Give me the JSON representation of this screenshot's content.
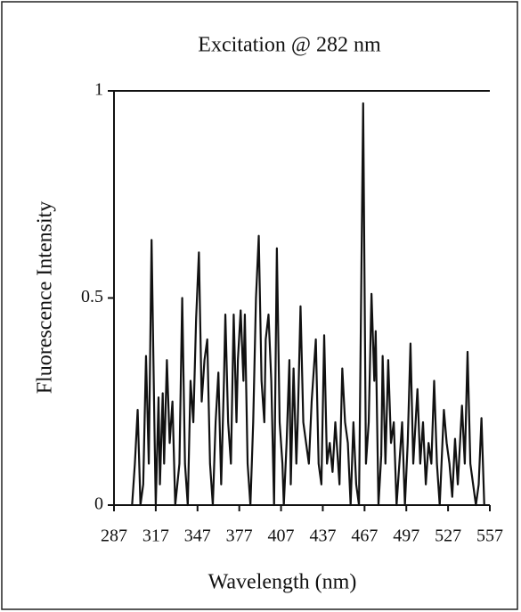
{
  "chart_data": {
    "type": "line",
    "title": "Excitation @ 282 nm",
    "x_label": "Wavelength (nm)",
    "y_label": "Fluorescence Intensity",
    "xlim": [
      287,
      557
    ],
    "xticks": [
      287,
      317,
      347,
      377,
      407,
      437,
      467,
      497,
      527,
      557
    ],
    "ylim": [
      0,
      1
    ],
    "yticks": [
      0,
      0.5,
      1
    ],
    "grid": false,
    "series": [
      {
        "color": "#111111",
        "x": [
          300,
          302,
          304,
          306,
          308,
          310,
          312,
          314,
          316,
          317,
          319,
          320,
          322,
          323,
          325,
          327,
          329,
          331,
          334,
          336,
          338,
          340,
          342,
          344,
          346,
          348,
          350,
          352,
          354,
          356,
          358,
          360,
          362,
          364,
          366,
          367,
          369,
          371,
          373,
          375,
          376,
          378,
          380,
          381,
          383,
          385,
          387,
          389,
          391,
          393,
          395,
          396,
          398,
          400,
          402,
          404,
          406,
          408,
          409,
          411,
          413,
          414,
          416,
          418,
          419,
          421,
          423,
          425,
          427,
          429,
          432,
          434,
          436,
          438,
          440,
          442,
          444,
          446,
          449,
          451,
          453,
          455,
          457,
          459,
          461,
          463,
          466,
          468,
          470,
          472,
          474,
          475,
          477,
          479,
          480,
          482,
          484,
          486,
          488,
          490,
          492,
          494,
          496,
          498,
          500,
          502,
          505,
          507,
          509,
          511,
          513,
          515,
          517,
          519,
          521,
          524,
          526,
          528,
          530,
          532,
          534,
          537,
          539,
          541,
          543,
          545,
          547,
          549,
          551,
          553
        ],
        "values": [
          0,
          0.1,
          0.23,
          0,
          0.05,
          0.36,
          0.1,
          0.64,
          0.2,
          0,
          0.26,
          0.05,
          0.27,
          0.1,
          0.35,
          0.15,
          0.25,
          0,
          0.1,
          0.5,
          0.1,
          0,
          0.3,
          0.2,
          0.45,
          0.61,
          0.25,
          0.35,
          0.4,
          0.1,
          0,
          0.2,
          0.32,
          0.05,
          0.3,
          0.46,
          0.2,
          0.1,
          0.46,
          0.2,
          0.35,
          0.47,
          0.3,
          0.46,
          0.1,
          0,
          0.2,
          0.5,
          0.65,
          0.3,
          0.2,
          0.4,
          0.46,
          0.3,
          0,
          0.62,
          0.2,
          0.1,
          0,
          0.15,
          0.35,
          0.05,
          0.33,
          0.1,
          0.2,
          0.48,
          0.2,
          0.15,
          0.1,
          0.25,
          0.4,
          0.1,
          0.05,
          0.41,
          0.1,
          0.15,
          0.08,
          0.2,
          0.05,
          0.33,
          0.2,
          0.15,
          0,
          0.2,
          0.05,
          0,
          0.97,
          0.1,
          0.2,
          0.51,
          0.3,
          0.42,
          0,
          0.12,
          0.36,
          0.1,
          0.35,
          0.15,
          0.2,
          0,
          0.1,
          0.2,
          0,
          0.15,
          0.39,
          0.1,
          0.28,
          0.1,
          0.2,
          0.05,
          0.15,
          0.1,
          0.3,
          0.1,
          0,
          0.23,
          0.15,
          0.1,
          0.02,
          0.16,
          0.05,
          0.24,
          0.1,
          0.37,
          0.1,
          0.05,
          0,
          0.05,
          0.21,
          0
        ]
      }
    ]
  }
}
